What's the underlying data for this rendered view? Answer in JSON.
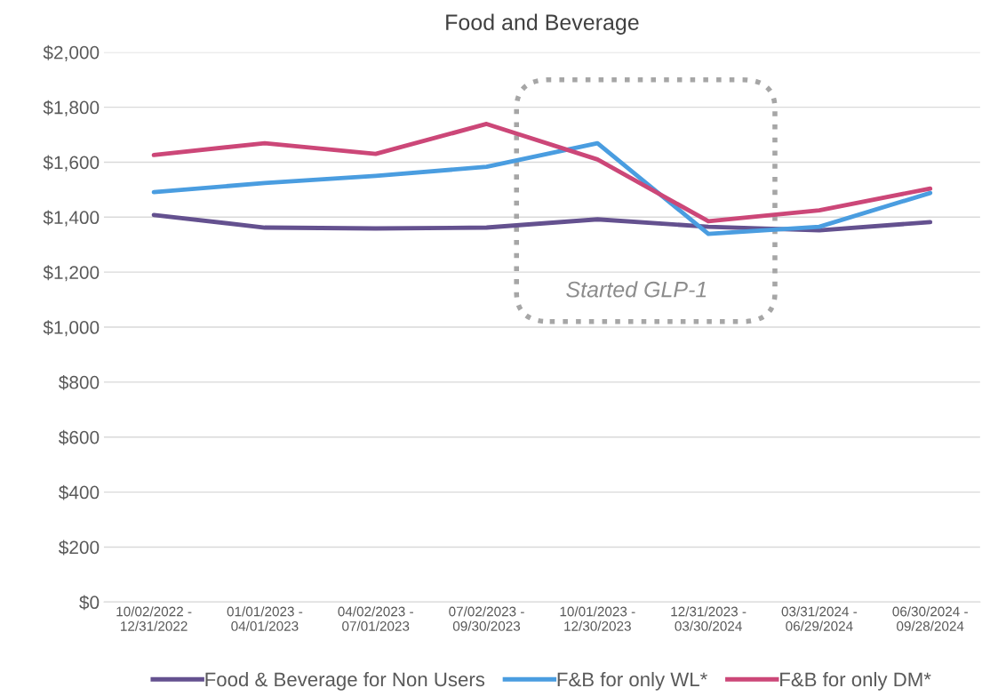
{
  "chart_data": {
    "type": "line",
    "title": "Food and Beverage",
    "categories": [
      "10/02/2022 -\n12/31/2022",
      "01/01/2023 -\n04/01/2023",
      "04/02/2023 -\n07/01/2023",
      "07/02/2023 -\n09/30/2023",
      "10/01/2023 -\n12/30/2023",
      "12/31/2023 -\n03/30/2024",
      "03/31/2024 -\n06/29/2024",
      "06/30/2024 -\n09/28/2024"
    ],
    "series": [
      {
        "name": "Food & Beverage for Non Users",
        "color": "#64518f",
        "values": [
          1408,
          1362,
          1359,
          1362,
          1392,
          1365,
          1352,
          1382
        ]
      },
      {
        "name": "F&B for only WL*",
        "color": "#4a9de0",
        "values": [
          1491,
          1524,
          1550,
          1583,
          1669,
          1339,
          1365,
          1488
        ]
      },
      {
        "name": "F&B for only DM*",
        "color": "#cc4778",
        "values": [
          1626,
          1669,
          1630,
          1739,
          1610,
          1385,
          1425,
          1504
        ]
      }
    ],
    "ylim": [
      0,
      2000
    ],
    "yticks": [
      {
        "value": 0,
        "label": "$0"
      },
      {
        "value": 200,
        "label": "$200"
      },
      {
        "value": 400,
        "label": "$400"
      },
      {
        "value": 600,
        "label": "$600"
      },
      {
        "value": 800,
        "label": "$800"
      },
      {
        "value": 1000,
        "label": "$1,000"
      },
      {
        "value": 1200,
        "label": "$1,200"
      },
      {
        "value": 1400,
        "label": "$1,400"
      },
      {
        "value": 1600,
        "label": "$1,600"
      },
      {
        "value": 1800,
        "label": "$1,800"
      },
      {
        "value": 2000,
        "label": "$2,000"
      }
    ],
    "annotations": [
      "Started GLP-1"
    ],
    "grid": "y",
    "legend": "bottom",
    "marker": "none",
    "line_style": "solid"
  }
}
